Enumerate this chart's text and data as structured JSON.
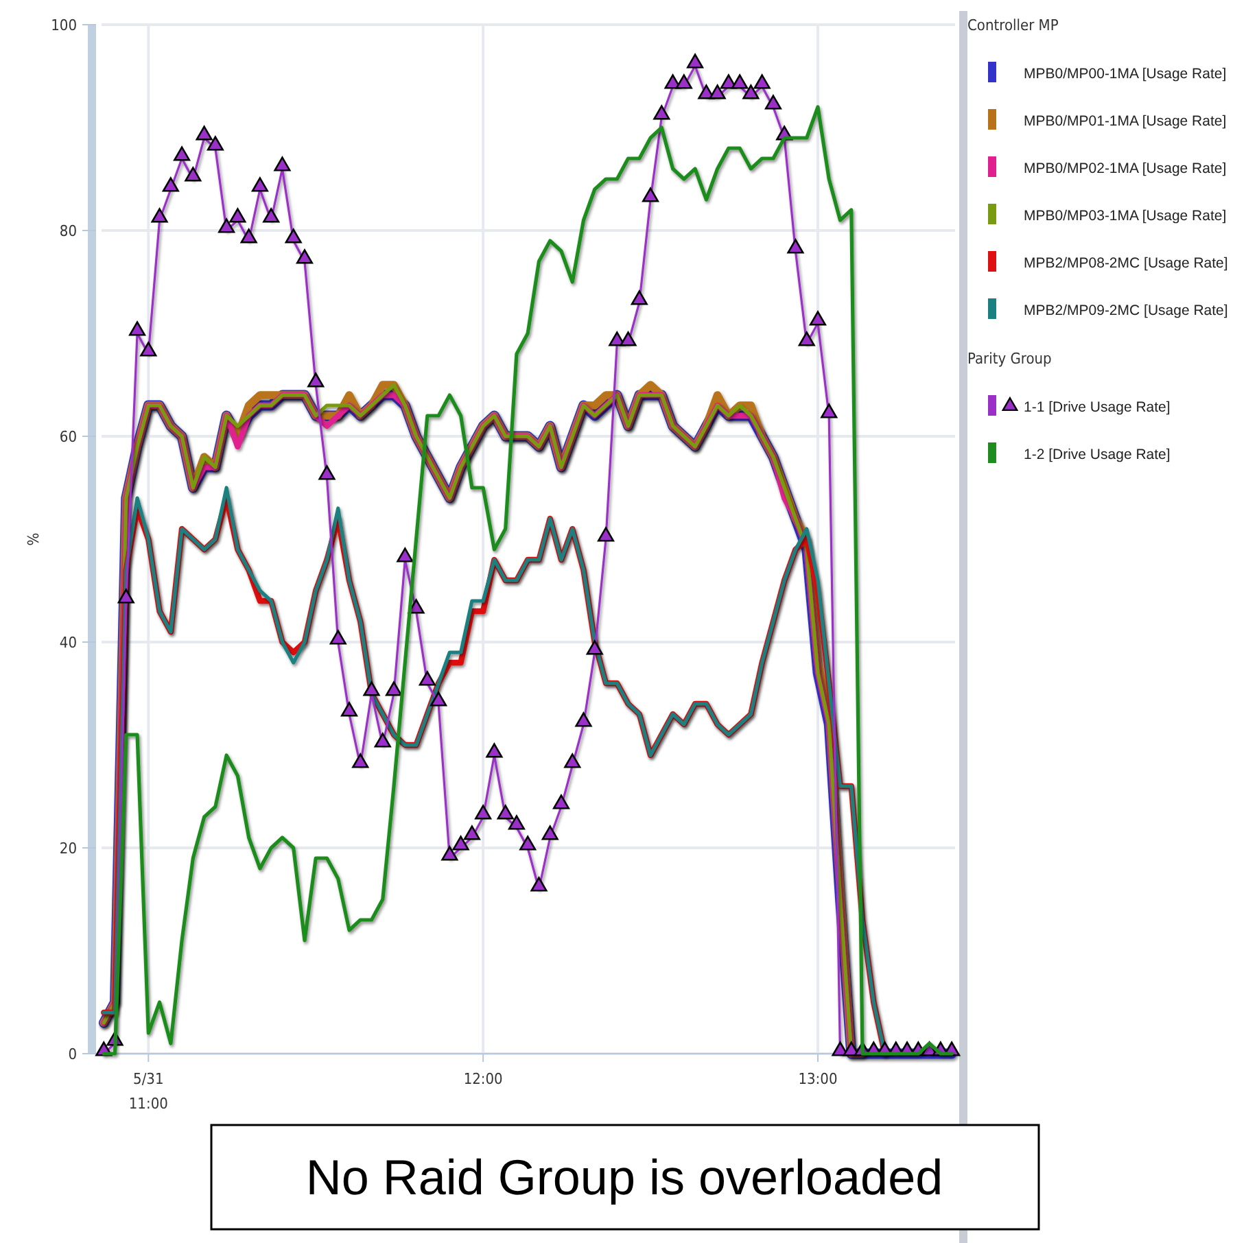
{
  "chart_data": {
    "type": "line",
    "ylabel": "%",
    "legend_title": "Controller MP",
    "legend": "right",
    "grid": true,
    "ylim": [
      0,
      100
    ],
    "yticks": [
      0,
      20,
      40,
      60,
      80,
      100
    ],
    "xlim": [
      10.86,
      13.41
    ],
    "xticks": [
      {
        "value": 11,
        "label": "5/31\n11:00"
      },
      {
        "value": 12,
        "label": "12:00"
      },
      {
        "value": 13,
        "label": "13:00"
      }
    ],
    "x": [
      10.8667,
      10.9,
      10.9333,
      10.9667,
      11,
      11.0333,
      11.0667,
      11.1,
      11.1333,
      11.1667,
      11.2,
      11.2333,
      11.2667,
      11.3,
      11.3333,
      11.3667,
      11.4,
      11.4333,
      11.4667,
      11.5,
      11.5333,
      11.5667,
      11.6,
      11.6333,
      11.6667,
      11.7,
      11.7333,
      11.7667,
      11.8,
      11.8333,
      11.8667,
      11.9,
      11.9333,
      11.9667,
      12,
      12.0333,
      12.0667,
      12.1,
      12.1333,
      12.1667,
      12.2,
      12.2333,
      12.2667,
      12.3,
      12.3333,
      12.3667,
      12.4,
      12.4333,
      12.4667,
      12.5,
      12.5333,
      12.5667,
      12.6,
      12.6333,
      12.6667,
      12.7,
      12.7333,
      12.7667,
      12.8,
      12.8333,
      12.8667,
      12.9,
      12.9333,
      12.9667,
      13,
      13.0333,
      13.0667,
      13.1,
      13.1333,
      13.1667,
      13.2,
      13.2333,
      13.2667,
      13.3,
      13.3333,
      13.3667,
      13.4
    ],
    "annotations": [
      "Parity Group",
      "No Raid Group is overloaded"
    ],
    "series": [
      {
        "name": "MPB0/MP00-1MA [Usage Rate]",
        "color": "#3333cc",
        "marker": "none",
        "values": [
          3,
          5,
          54,
          59,
          63,
          63,
          61,
          60,
          55,
          57,
          57,
          62,
          60,
          62,
          63,
          63,
          64,
          64,
          64,
          62,
          62,
          62,
          63,
          62,
          63,
          64,
          64,
          63,
          60,
          58,
          56,
          54,
          57,
          59,
          61,
          62,
          60,
          60,
          60,
          59,
          61,
          57,
          60,
          63,
          62,
          63,
          64,
          61,
          64,
          64,
          64,
          61,
          60,
          59,
          61,
          63,
          62,
          62,
          62,
          60,
          58,
          55,
          52,
          49,
          37,
          32,
          15,
          0,
          0,
          0,
          0,
          0,
          0,
          0,
          0,
          0,
          0
        ]
      },
      {
        "name": "MPB0/MP01-1MA [Usage Rate]",
        "color": "#b8731a",
        "marker": "none",
        "values": [
          3,
          5,
          54,
          59,
          63,
          63,
          61,
          60,
          55,
          58,
          57,
          62,
          60,
          63,
          64,
          64,
          64,
          64,
          64,
          62,
          62,
          62,
          64,
          62,
          63,
          65,
          65,
          63,
          60,
          58,
          56,
          54,
          57,
          59,
          61,
          62,
          60,
          60,
          60,
          59,
          61,
          57,
          60,
          63,
          63,
          64,
          64,
          61,
          64,
          65,
          64,
          61,
          60,
          59,
          61,
          64,
          62,
          63,
          63,
          60,
          58,
          55,
          52,
          50,
          38,
          33,
          16,
          0,
          0,
          null,
          null,
          null,
          null,
          null,
          null,
          null,
          null
        ]
      },
      {
        "name": "MPB0/MP02-1MA [Usage Rate]",
        "color": "#e0208f",
        "marker": "none",
        "values": [
          3,
          5,
          54,
          59,
          63,
          63,
          61,
          60,
          55,
          57,
          57,
          62,
          59,
          62,
          63,
          63,
          64,
          64,
          64,
          62,
          61,
          62,
          63,
          62,
          63,
          64,
          64,
          63,
          60,
          58,
          56,
          54,
          57,
          59,
          61,
          62,
          60,
          60,
          60,
          59,
          61,
          57,
          60,
          63,
          62,
          63,
          64,
          61,
          64,
          64,
          64,
          61,
          60,
          59,
          61,
          63,
          62,
          62,
          62,
          60,
          58,
          54,
          52,
          49,
          37,
          32,
          15,
          0,
          0,
          null,
          null,
          null,
          null,
          null,
          null,
          null,
          null
        ]
      },
      {
        "name": "MPB0/MP03-1MA [Usage Rate]",
        "color": "#7a9a10",
        "marker": "none",
        "values": [
          3,
          5,
          54,
          59,
          63,
          63,
          61,
          60,
          55,
          58,
          57,
          62,
          61,
          62,
          63,
          63,
          64,
          64,
          64,
          62,
          63,
          63,
          63,
          62,
          63,
          64,
          65,
          63,
          60,
          58,
          56,
          54,
          57,
          59,
          61,
          62,
          60,
          60,
          60,
          59,
          61,
          57,
          60,
          63,
          62,
          63,
          64,
          61,
          64,
          64,
          64,
          61,
          60,
          59,
          61,
          63,
          62,
          63,
          62,
          60,
          58,
          55,
          52,
          49,
          37,
          32,
          15,
          0,
          0,
          null,
          null,
          null,
          null,
          null,
          null,
          null,
          null
        ]
      },
      {
        "name": "MPB2/MP08-2MC [Usage Rate]",
        "color": "#dd1111",
        "marker": "none",
        "values": [
          4,
          4,
          47,
          53,
          50,
          43,
          41,
          51,
          50,
          49,
          50,
          54,
          49,
          47,
          44,
          44,
          40,
          39,
          40,
          45,
          48,
          52,
          46,
          42,
          35,
          33,
          31,
          30,
          30,
          33,
          36,
          38,
          38,
          43,
          43,
          48,
          46,
          46,
          48,
          48,
          52,
          48,
          51,
          47,
          40,
          36,
          36,
          34,
          33,
          29,
          31,
          33,
          32,
          34,
          34,
          32,
          31,
          32,
          33,
          38,
          42,
          46,
          49,
          50,
          45,
          36,
          26,
          26,
          13,
          5,
          0,
          null,
          null,
          null,
          null,
          null,
          null
        ]
      },
      {
        "name": "MPB2/MP09-2MC [Usage Rate]",
        "color": "#1a8080",
        "marker": "none",
        "values": [
          4,
          4,
          47,
          54,
          50,
          43,
          41,
          51,
          50,
          49,
          50,
          55,
          49,
          47,
          45,
          44,
          40,
          38,
          40,
          45,
          48,
          53,
          46,
          42,
          35,
          33,
          31,
          30,
          30,
          33,
          36,
          39,
          39,
          44,
          44,
          48,
          46,
          46,
          48,
          48,
          52,
          48,
          51,
          47,
          40,
          36,
          36,
          34,
          33,
          29,
          31,
          33,
          32,
          34,
          34,
          32,
          31,
          32,
          33,
          38,
          42,
          46,
          49,
          51,
          46,
          36,
          26,
          26,
          13,
          5,
          0,
          null,
          null,
          null,
          null,
          null,
          null
        ]
      },
      {
        "name": "1-1 [Drive Usage Rate]",
        "color": "#9b30c8",
        "marker": "triangle",
        "values": [
          0,
          1,
          44,
          70,
          68,
          81,
          84,
          87,
          85,
          89,
          88,
          80,
          81,
          79,
          84,
          81,
          86,
          79,
          77,
          65,
          56,
          40,
          33,
          28,
          35,
          30,
          35,
          48,
          43,
          36,
          34,
          19,
          20,
          21,
          23,
          29,
          23,
          22,
          20,
          16,
          21,
          24,
          28,
          32,
          39,
          50,
          69,
          69,
          73,
          83,
          91,
          94,
          94,
          96,
          93,
          93,
          94,
          94,
          93,
          94,
          92,
          89,
          78,
          69,
          71,
          62,
          0,
          0,
          0,
          0,
          0,
          0,
          0,
          0,
          0,
          0,
          0
        ]
      },
      {
        "name": "1-2 [Drive Usage Rate]",
        "color": "#1e8c1e",
        "marker": "none",
        "values": [
          0,
          0,
          31,
          31,
          2,
          5,
          1,
          11,
          19,
          23,
          24,
          29,
          27,
          21,
          18,
          20,
          21,
          20,
          11,
          19,
          19,
          17,
          12,
          13,
          13,
          15,
          26,
          38,
          50,
          62,
          62,
          64,
          62,
          55,
          55,
          49,
          51,
          68,
          70,
          77,
          79,
          78,
          75,
          81,
          84,
          85,
          85,
          87,
          87,
          89,
          90,
          86,
          85,
          86,
          83,
          86,
          88,
          88,
          86,
          87,
          87,
          89,
          89,
          89,
          92,
          85,
          81,
          82,
          0,
          0,
          0,
          0,
          0,
          0,
          1,
          0,
          0
        ]
      }
    ]
  }
}
